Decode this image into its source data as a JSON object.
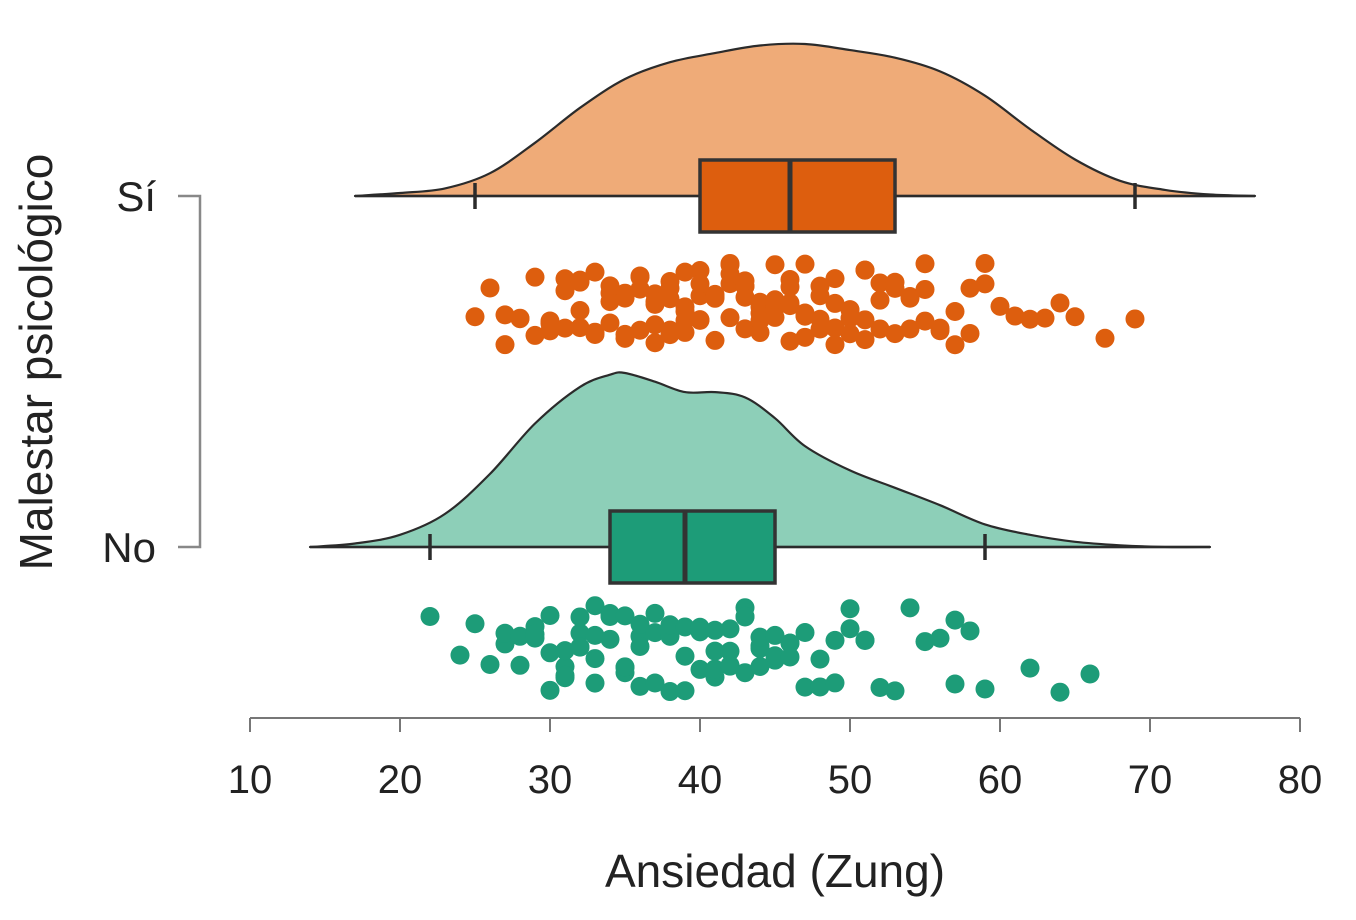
{
  "chart_data": {
    "type": "raincloud",
    "xlabel": "Ansiedad (Zung)",
    "ylabel": "Malestar psicológico",
    "xlim": [
      10,
      80
    ],
    "xticks": [
      10,
      20,
      30,
      40,
      50,
      60,
      70,
      80
    ],
    "grid": false,
    "legend": "none",
    "groups": [
      {
        "name": "Sí",
        "fill": "#efab78",
        "box_color": "#dd5e0e",
        "point_color": "#dd5e0e",
        "box": {
          "whisker_low": 25,
          "q1": 40,
          "median": 46,
          "q3": 53,
          "whisker_high": 69
        },
        "density": {
          "x": [
            17,
            20,
            23,
            26,
            29,
            32,
            35,
            38,
            41,
            44,
            47,
            50,
            53,
            56,
            59,
            62,
            65,
            68,
            71,
            74,
            77
          ],
          "y": [
            0.0,
            0.02,
            0.05,
            0.15,
            0.35,
            0.58,
            0.77,
            0.88,
            0.94,
            0.99,
            1.0,
            0.96,
            0.91,
            0.82,
            0.66,
            0.44,
            0.24,
            0.1,
            0.04,
            0.01,
            0.0
          ]
        },
        "points": [
          25,
          26,
          27,
          27,
          28,
          28,
          29,
          29,
          30,
          30,
          30,
          31,
          31,
          31,
          32,
          32,
          32,
          32,
          33,
          33,
          33,
          34,
          34,
          34,
          34,
          35,
          35,
          35,
          35,
          35,
          36,
          36,
          36,
          36,
          37,
          37,
          37,
          37,
          37,
          38,
          38,
          38,
          38,
          38,
          39,
          39,
          39,
          39,
          39,
          40,
          40,
          40,
          40,
          40,
          41,
          41,
          41,
          41,
          41,
          42,
          42,
          42,
          42,
          42,
          43,
          43,
          43,
          43,
          43,
          44,
          44,
          44,
          44,
          44,
          45,
          45,
          45,
          45,
          45,
          46,
          46,
          46,
          46,
          46,
          47,
          47,
          47,
          47,
          47,
          48,
          48,
          48,
          48,
          49,
          49,
          49,
          49,
          50,
          50,
          50,
          50,
          51,
          51,
          51,
          51,
          52,
          52,
          52,
          53,
          53,
          53,
          54,
          54,
          54,
          55,
          55,
          55,
          56,
          56,
          57,
          57,
          58,
          58,
          59,
          59,
          60,
          61,
          62,
          63,
          64,
          65,
          67,
          69
        ]
      },
      {
        "name": "No",
        "fill": "#8dcfb8",
        "box_color": "#1d9c78",
        "point_color": "#1d9c78",
        "box": {
          "whisker_low": 22,
          "q1": 34,
          "median": 39,
          "q3": 45,
          "whisker_high": 59
        },
        "density": {
          "x": [
            14,
            17,
            20,
            23,
            26,
            29,
            32,
            34,
            35,
            37,
            39,
            41,
            43,
            45,
            47,
            50,
            53,
            56,
            59,
            62,
            65,
            68,
            71,
            74
          ],
          "y": [
            0.0,
            0.02,
            0.07,
            0.19,
            0.42,
            0.71,
            0.92,
            0.99,
            1.0,
            0.95,
            0.89,
            0.89,
            0.86,
            0.74,
            0.58,
            0.44,
            0.34,
            0.24,
            0.13,
            0.07,
            0.03,
            0.01,
            0.0,
            0.0
          ]
        },
        "points": [
          22,
          24,
          25,
          26,
          27,
          27,
          28,
          28,
          29,
          29,
          29,
          30,
          30,
          30,
          31,
          31,
          31,
          31,
          32,
          32,
          32,
          32,
          33,
          33,
          33,
          33,
          34,
          34,
          34,
          34,
          35,
          35,
          35,
          35,
          36,
          36,
          36,
          36,
          37,
          37,
          37,
          38,
          38,
          38,
          39,
          39,
          39,
          40,
          40,
          40,
          41,
          41,
          41,
          41,
          42,
          42,
          42,
          42,
          43,
          43,
          43,
          43,
          44,
          44,
          44,
          44,
          45,
          45,
          45,
          46,
          46,
          46,
          47,
          47,
          48,
          48,
          49,
          49,
          50,
          50,
          51,
          51,
          52,
          53,
          54,
          55,
          56,
          57,
          57,
          58,
          59,
          62,
          64,
          66
        ]
      }
    ]
  }
}
